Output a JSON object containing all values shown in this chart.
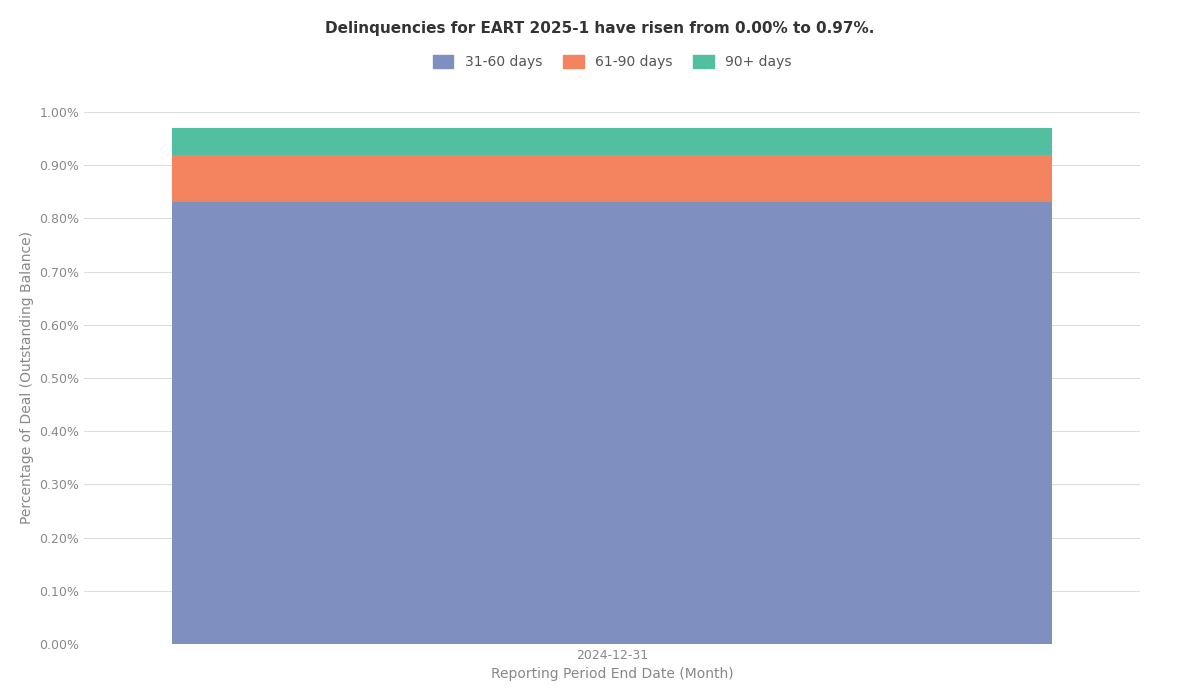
{
  "title": "Delinquencies for EART 2025-1 have risen from 0.00% to 0.97%.",
  "xlabel": "Reporting Period End Date (Month)",
  "ylabel": "Percentage of Deal (Outstanding Balance)",
  "categories": [
    "2024-12-31"
  ],
  "series": {
    "31-60 days": [
      0.0083
    ],
    "61-90 days": [
      0.0009
    ],
    "90+ days": [
      0.0005
    ]
  },
  "colors": {
    "31-60 days": "#7f8fbf",
    "61-90 days": "#f4845f",
    "90+ days": "#52bfa0"
  },
  "ylim": [
    0,
    0.01
  ],
  "yticks": [
    0.0,
    0.001,
    0.002,
    0.003,
    0.004,
    0.005,
    0.006,
    0.007,
    0.008,
    0.009,
    0.01
  ],
  "ytick_labels": [
    "0.00%",
    "0.10%",
    "0.20%",
    "0.30%",
    "0.40%",
    "0.50%",
    "0.60%",
    "0.70%",
    "0.80%",
    "0.90%",
    "1.00%"
  ],
  "bar_width": 0.8,
  "title_fontsize": 11,
  "axis_fontsize": 10,
  "tick_fontsize": 9,
  "legend_fontsize": 10,
  "background_color": "#ffffff",
  "grid_color": "#dddddd"
}
